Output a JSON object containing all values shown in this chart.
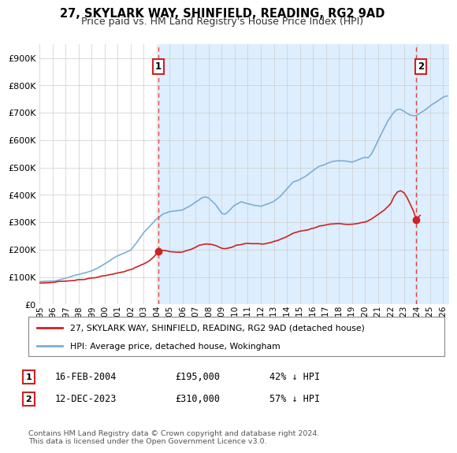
{
  "title": "27, SKYLARK WAY, SHINFIELD, READING, RG2 9AD",
  "subtitle": "Price paid vs. HM Land Registry's House Price Index (HPI)",
  "ylabel_ticks": [
    "£0",
    "£100K",
    "£200K",
    "£300K",
    "£400K",
    "£500K",
    "£600K",
    "£700K",
    "£800K",
    "£900K"
  ],
  "ytick_values": [
    0,
    100000,
    200000,
    300000,
    400000,
    500000,
    600000,
    700000,
    800000,
    900000
  ],
  "ylim": [
    0,
    950000
  ],
  "xlim_start": 1995.0,
  "xlim_end": 2026.5,
  "xtick_years": [
    1995,
    1996,
    1997,
    1998,
    1999,
    2000,
    2001,
    2002,
    2003,
    2004,
    2005,
    2006,
    2007,
    2008,
    2009,
    2010,
    2011,
    2012,
    2013,
    2014,
    2015,
    2016,
    2017,
    2018,
    2019,
    2020,
    2021,
    2022,
    2023,
    2024,
    2025,
    2026
  ],
  "hpi_color": "#7bafd4",
  "price_color": "#cc2222",
  "vline_color": "#dd4444",
  "grid_color": "#cccccc",
  "bg_color": "#ffffff",
  "fill_color": "#ddeeff",
  "sale1_x": 2004.12,
  "sale1_y": 195000,
  "sale1_label": "1",
  "sale2_x": 2023.95,
  "sale2_y": 310000,
  "sale2_label": "2",
  "legend_line1": "27, SKYLARK WAY, SHINFIELD, READING, RG2 9AD (detached house)",
  "legend_line2": "HPI: Average price, detached house, Wokingham",
  "annotation1_date": "16-FEB-2004",
  "annotation1_price": "£195,000",
  "annotation1_hpi": "42% ↓ HPI",
  "annotation2_date": "12-DEC-2023",
  "annotation2_price": "£310,000",
  "annotation2_hpi": "57% ↓ HPI",
  "footnote": "Contains HM Land Registry data © Crown copyright and database right 2024.\nThis data is licensed under the Open Government Licence v3.0."
}
